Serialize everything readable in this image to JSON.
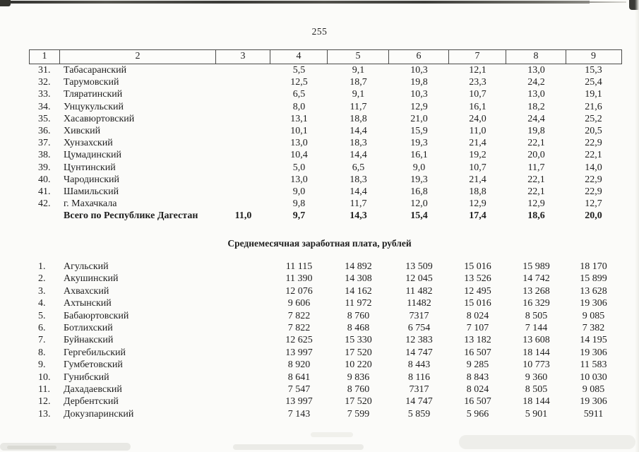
{
  "page": {
    "number": "255"
  },
  "colors": {
    "paper": "#fbfbf9",
    "ink": "#1e1e1e",
    "table_line": "#4a4a48"
  },
  "table1": {
    "header": [
      "1",
      "2",
      "3",
      "4",
      "5",
      "6",
      "7",
      "8",
      "9"
    ],
    "rows": [
      {
        "num": "31.",
        "name": "Табасаранский",
        "c3": "",
        "c4": "5,5",
        "c5": "9,1",
        "c6": "10,3",
        "c7": "12,1",
        "c8": "13,0",
        "c9": "15,3"
      },
      {
        "num": "32.",
        "name": "Тарумовский",
        "c3": "",
        "c4": "12,5",
        "c5": "18,7",
        "c6": "19,8",
        "c7": "23,3",
        "c8": "24,2",
        "c9": "25,4"
      },
      {
        "num": "33.",
        "name": "Тляратинский",
        "c3": "",
        "c4": "6,5",
        "c5": "9,1",
        "c6": "10,3",
        "c7": "10,7",
        "c8": "13,0",
        "c9": "19,1"
      },
      {
        "num": "34.",
        "name": "Унцукульский",
        "c3": "",
        "c4": "8,0",
        "c5": "11,7",
        "c6": "12,9",
        "c7": "16,1",
        "c8": "18,2",
        "c9": "21,6"
      },
      {
        "num": "35.",
        "name": "Хасавюртовский",
        "c3": "",
        "c4": "13,1",
        "c5": "18,8",
        "c6": "21,0",
        "c7": "24,0",
        "c8": "24,4",
        "c9": "25,2"
      },
      {
        "num": "36.",
        "name": "Хивский",
        "c3": "",
        "c4": "10,1",
        "c5": "14,4",
        "c6": "15,9",
        "c7": "11,0",
        "c8": "19,8",
        "c9": "20,5"
      },
      {
        "num": "37.",
        "name": "Хунзахский",
        "c3": "",
        "c4": "13,0",
        "c5": "18,3",
        "c6": "19,3",
        "c7": "21,4",
        "c8": "22,1",
        "c9": "22,9"
      },
      {
        "num": "38.",
        "name": "Цумадинский",
        "c3": "",
        "c4": "10,4",
        "c5": "14,4",
        "c6": "16,1",
        "c7": "19,2",
        "c8": "20,0",
        "c9": "22,1"
      },
      {
        "num": "39.",
        "name": "Цунтинский",
        "c3": "",
        "c4": "5,0",
        "c5": "6,5",
        "c6": "9,0",
        "c7": "10,7",
        "c8": "11,7",
        "c9": "14,0"
      },
      {
        "num": "40.",
        "name": "Чародинский",
        "c3": "",
        "c4": "13,0",
        "c5": "18,3",
        "c6": "19,3",
        "c7": "21,4",
        "c8": "22,1",
        "c9": "22,9"
      },
      {
        "num": "41.",
        "name": "Шамильский",
        "c3": "",
        "c4": "9,0",
        "c5": "14,4",
        "c6": "16,8",
        "c7": "18,8",
        "c8": "22,1",
        "c9": "22,9"
      },
      {
        "num": "42.",
        "name": "г. Махачкала",
        "c3": "",
        "c4": "9,8",
        "c5": "11,7",
        "c6": "12,0",
        "c7": "12,9",
        "c8": "12,9",
        "c9": "12,7"
      }
    ],
    "total": {
      "label": "Всего по Республике Дагестан",
      "c3": "11,0",
      "c4": "9,7",
      "c5": "14,3",
      "c6": "15,4",
      "c7": "17,4",
      "c8": "18,6",
      "c9": "20,0"
    }
  },
  "section2": {
    "title": "Среднемесячная заработная плата, рублей",
    "rows": [
      {
        "num": "1.",
        "name": "Агульский",
        "c3": "",
        "c4": "11 115",
        "c5": "14 892",
        "c6": "13 509",
        "c7": "15 016",
        "c8": "15 989",
        "c9": "18 170"
      },
      {
        "num": "2.",
        "name": "Акушинский",
        "c3": "",
        "c4": "11 390",
        "c5": "14 308",
        "c6": "12 045",
        "c7": "13 526",
        "c8": "14 742",
        "c9": "15 899"
      },
      {
        "num": "3.",
        "name": "Ахвахский",
        "c3": "",
        "c4": "12 076",
        "c5": "14 162",
        "c6": "11 482",
        "c7": "12 495",
        "c8": "13 268",
        "c9": "13 628"
      },
      {
        "num": "4.",
        "name": "Ахтынский",
        "c3": "",
        "c4": "9 606",
        "c5": "11 972",
        "c6": "11482",
        "c7": "15 016",
        "c8": "16 329",
        "c9": "19 306"
      },
      {
        "num": "5.",
        "name": "Бабаюртовский",
        "c3": "",
        "c4": "7 822",
        "c5": "8 760",
        "c6": "7317",
        "c7": "8 024",
        "c8": "8 505",
        "c9": "9 085"
      },
      {
        "num": "6.",
        "name": "Ботлихский",
        "c3": "",
        "c4": "7 822",
        "c5": "8 468",
        "c6": "6 754",
        "c7": "7 107",
        "c8": "7 144",
        "c9": "7 382"
      },
      {
        "num": "7.",
        "name": "Буйнакский",
        "c3": "",
        "c4": "12 625",
        "c5": "15 330",
        "c6": "12 383",
        "c7": "13 182",
        "c8": "13 608",
        "c9": "14 195"
      },
      {
        "num": "8.",
        "name": "Гергебильский",
        "c3": "",
        "c4": "13 997",
        "c5": "17 520",
        "c6": "14 747",
        "c7": "16 507",
        "c8": "18 144",
        "c9": "19 306"
      },
      {
        "num": "9.",
        "name": "Гумбетовский",
        "c3": "",
        "c4": "8 920",
        "c5": "10 220",
        "c6": "8 443",
        "c7": "9 285",
        "c8": "10 773",
        "c9": "11 583"
      },
      {
        "num": "10.",
        "name": "Гунибский",
        "c3": "",
        "c4": "8 641",
        "c5": "9 836",
        "c6": "8 116",
        "c7": "8 843",
        "c8": "9 360",
        "c9": "10 030"
      },
      {
        "num": "11.",
        "name": "Дахадаевский",
        "c3": "",
        "c4": "7 547",
        "c5": "8 760",
        "c6": "7317",
        "c7": "8 024",
        "c8": "8 505",
        "c9": "9 085"
      },
      {
        "num": "12.",
        "name": "Дербентский",
        "c3": "",
        "c4": "13 997",
        "c5": "17 520",
        "c6": "14 747",
        "c7": "16 507",
        "c8": "18 144",
        "c9": "19 306"
      },
      {
        "num": "13.",
        "name": "Докузпаринский",
        "c3": "",
        "c4": "7 143",
        "c5": "7 599",
        "c6": "5 859",
        "c7": "5 966",
        "c8": "5 901",
        "c9": "5911"
      }
    ]
  }
}
